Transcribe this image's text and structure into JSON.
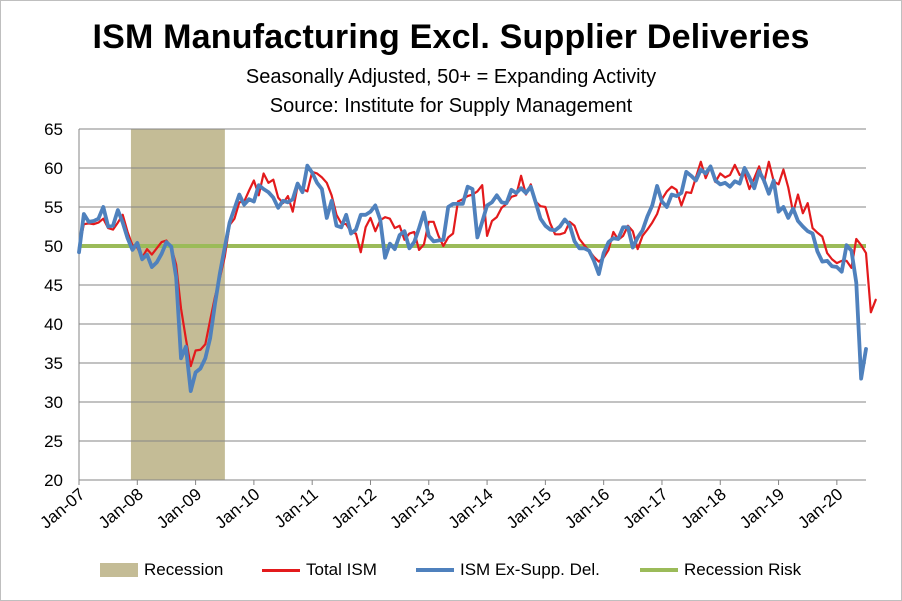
{
  "title": "ISM Manufacturing Excl. Supplier Deliveries",
  "subtitle1": "Seasonally Adjusted, 50+ = Expanding Activity",
  "subtitle2": "Source:  Institute for Supply Management",
  "colors": {
    "recession": "#c4bc96",
    "total_ism": "#e31a1c",
    "ex_supp": "#4f81bd",
    "recession_risk": "#9bbb59",
    "grid": "#868686"
  },
  "legend": {
    "recession": "Recession",
    "total_ism": "Total ISM",
    "ex_supp": "ISM Ex-Supp. Del.",
    "recession_risk": "Recession Risk"
  },
  "chart_data": {
    "type": "line",
    "x_tick_labels": [
      "Jan-07",
      "Jan-08",
      "Jan-09",
      "Jan-10",
      "Jan-11",
      "Jan-12",
      "Jan-13",
      "Jan-14",
      "Jan-15",
      "Jan-16",
      "Jan-17",
      "Jan-18",
      "Jan-19",
      "Jan-20"
    ],
    "x_start": "Jan-07",
    "ylim": [
      20,
      65
    ],
    "y_ticks": [
      20,
      25,
      30,
      35,
      40,
      45,
      50,
      55,
      60,
      65
    ],
    "grid": true,
    "legend_position": "bottom",
    "recession_band": {
      "start": "Dec-07",
      "end": "Jun-09"
    },
    "recession_risk_level": 50,
    "series": [
      {
        "name": "Total ISM",
        "key": "total_ism",
        "values": [
          49.8,
          52.8,
          52.9,
          52.8,
          53.0,
          53.5,
          52.3,
          52.1,
          53.0,
          54.0,
          51.8,
          50.1,
          49.8,
          48.5,
          49.6,
          48.9,
          49.7,
          50.5,
          50.7,
          49.8,
          47.6,
          42.0,
          38.1,
          34.6,
          36.6,
          36.7,
          37.4,
          40.5,
          43.5,
          45.9,
          48.6,
          52.7,
          53.5,
          55.6,
          55.7,
          57.1,
          58.4,
          56.5,
          59.3,
          58.1,
          58.5,
          56.2,
          55.5,
          56.4,
          54.4,
          57.7,
          57.3,
          57.0,
          59.5,
          59.3,
          58.8,
          58.1,
          56.5,
          54.0,
          52.9,
          52.8,
          51.8,
          51.6,
          49.2,
          52.4,
          53.6,
          51.9,
          53.3,
          53.7,
          53.5,
          52.3,
          52.6,
          50.8,
          51.6,
          51.8,
          49.5,
          50.2,
          53.1,
          53.1,
          51.3,
          50.0,
          51.1,
          51.6,
          55.7,
          56.0,
          56.4,
          56.6,
          57.0,
          57.8,
          51.3,
          53.2,
          53.7,
          54.9,
          55.4,
          56.3,
          56.5,
          59.0,
          56.6,
          57.9,
          55.7,
          55.1,
          55.0,
          52.9,
          51.5,
          51.5,
          51.7,
          53.1,
          52.6,
          50.9,
          50.1,
          49.4,
          48.6,
          48.0,
          48.5,
          49.5,
          51.8,
          50.8,
          51.3,
          52.6,
          51.9,
          49.6,
          51.3,
          52.1,
          53.0,
          54.1,
          56.0,
          57.0,
          57.6,
          57.2,
          55.2,
          56.9,
          56.8,
          58.8,
          60.8,
          58.7,
          60.2,
          58.2,
          59.3,
          58.8,
          59.1,
          60.4,
          59.1,
          59.3,
          57.3,
          58.7,
          60.2,
          58.1,
          60.8,
          58.3,
          57.9,
          59.8,
          57.5,
          54.3,
          56.6,
          54.2,
          55.5,
          52.3,
          51.7,
          51.2,
          49.1,
          48.3,
          47.8,
          48.1,
          48.1,
          47.2,
          50.9,
          50.1,
          49.1,
          41.5,
          43.1
        ],
        "color": "#e31a1c"
      },
      {
        "name": "ISM Ex-Supp. Del.",
        "key": "ex_supp",
        "values": [
          49.2,
          54.1,
          53.1,
          53.2,
          53.5,
          55.0,
          52.5,
          52.6,
          54.6,
          53.0,
          51.0,
          49.5,
          50.4,
          48.3,
          48.9,
          47.3,
          47.9,
          49.0,
          50.5,
          49.9,
          46.0,
          35.6,
          37.1,
          31.4,
          33.8,
          34.3,
          35.6,
          38.2,
          42.6,
          46.5,
          49.8,
          53.0,
          54.8,
          56.6,
          55.3,
          56.0,
          55.7,
          57.8,
          57.3,
          56.9,
          56.2,
          54.9,
          55.8,
          55.6,
          56.0,
          58.0,
          56.9,
          60.3,
          59.4,
          58.1,
          57.3,
          53.6,
          55.8,
          52.6,
          52.4,
          54.0,
          51.6,
          52.1,
          54.0,
          54.0,
          54.4,
          55.2,
          53.4,
          48.5,
          50.3,
          49.6,
          51.4,
          51.9,
          49.7,
          50.5,
          52.3,
          54.3,
          51.3,
          50.6,
          50.7,
          50.8,
          55.0,
          55.4,
          55.4,
          55.4,
          57.6,
          57.3,
          51.1,
          53.1,
          55.2,
          55.6,
          56.5,
          55.6,
          55.5,
          57.2,
          56.8,
          57.4,
          56.8,
          57.6,
          55.6,
          53.5,
          52.6,
          52.1,
          52.0,
          52.5,
          53.4,
          52.7,
          50.6,
          49.7,
          49.7,
          49.4,
          48.1,
          46.4,
          49.1,
          50.5,
          51.0,
          50.9,
          52.4,
          52.4,
          49.8,
          51.1,
          52.0,
          53.8,
          55.2,
          57.7,
          55.7,
          55.0,
          56.6,
          56.4,
          56.8,
          59.5,
          59.0,
          58.4,
          59.8,
          59.3,
          60.2,
          58.4,
          57.9,
          58.1,
          57.6,
          58.3,
          58.0,
          60.0,
          58.8,
          57.4,
          59.6,
          58.4,
          56.7,
          58.4,
          54.4,
          55.0,
          53.6,
          54.8,
          53.2,
          52.5,
          51.9,
          51.6,
          49.3,
          48.0,
          48.1,
          47.4,
          47.3,
          46.7,
          50.1,
          49.4,
          45.3,
          33.0,
          36.8
        ],
        "color": "#4f81bd"
      },
      {
        "name": "Recession Risk",
        "key": "recession_risk",
        "values": [
          50,
          50
        ],
        "color": "#9bbb59"
      }
    ]
  }
}
